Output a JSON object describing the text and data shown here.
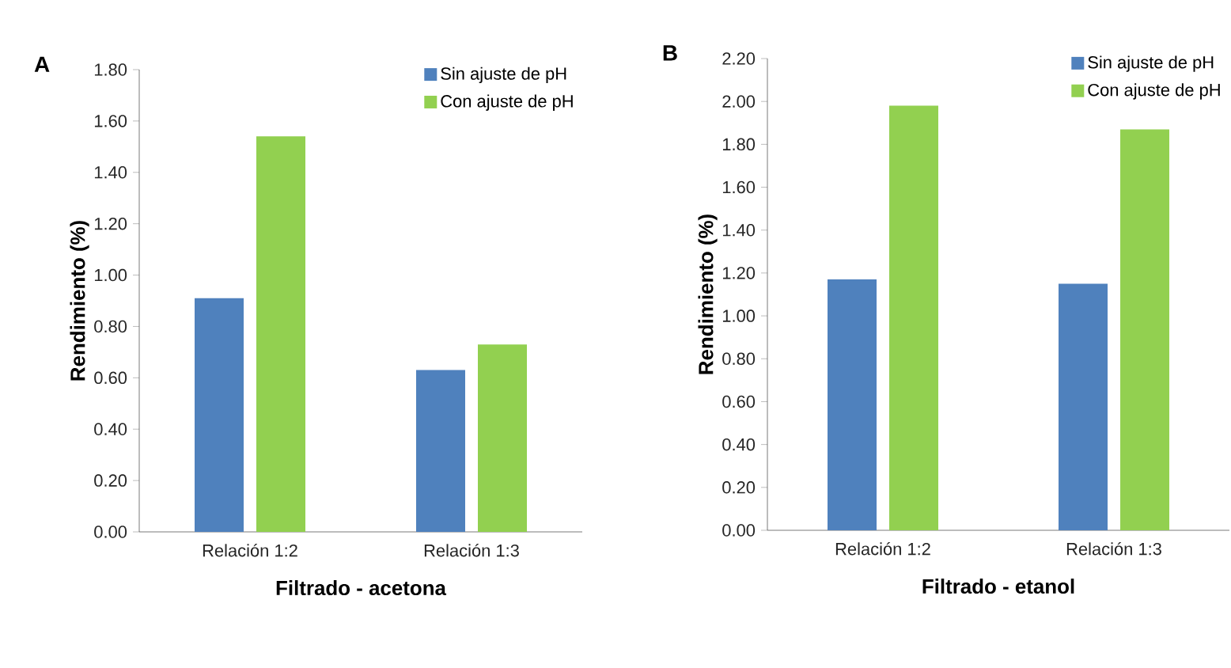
{
  "chart_data": [
    {
      "type": "bar",
      "annotations": [
        "A"
      ],
      "xlabel": "Filtrado - acetona",
      "ylabel": "Rendimiento (%)",
      "categories": [
        "Relación 1:2",
        "Relación 1:3"
      ],
      "series": [
        {
          "name": "Sin ajuste de pH",
          "color": "#4f81bd",
          "values": [
            0.91,
            0.63
          ]
        },
        {
          "name": "Con ajuste de pH",
          "color": "#92d050",
          "values": [
            1.54,
            0.73
          ]
        }
      ],
      "ylim": [
        0,
        1.8
      ],
      "yticks": [
        {
          "value": 0,
          "label": "0.00"
        },
        {
          "value": 0.2,
          "label": "0.20"
        },
        {
          "value": 0.4,
          "label": "0.40"
        },
        {
          "value": 0.6,
          "label": "0.60"
        },
        {
          "value": 0.8,
          "label": "0.80"
        },
        {
          "value": 1.0,
          "label": "1.00"
        },
        {
          "value": 1.2,
          "label": "1.20"
        },
        {
          "value": 1.4,
          "label": "1.40"
        },
        {
          "value": 1.6,
          "label": "1.60"
        },
        {
          "value": 1.8,
          "label": "1.80"
        }
      ],
      "legend": "top right"
    },
    {
      "type": "bar",
      "annotations": [
        "B"
      ],
      "xlabel": "Filtrado - etanol",
      "ylabel": "Rendimiento (%)",
      "categories": [
        "Relación 1:2",
        "Relación 1:3"
      ],
      "series": [
        {
          "name": "Sin ajuste de pH",
          "color": "#4f81bd",
          "values": [
            1.17,
            1.15
          ]
        },
        {
          "name": "Con ajuste de pH",
          "color": "#92d050",
          "values": [
            1.98,
            1.87
          ]
        }
      ],
      "ylim": [
        0,
        2.2
      ],
      "yticks": [
        {
          "value": 0,
          "label": "0.00"
        },
        {
          "value": 0.2,
          "label": "0.20"
        },
        {
          "value": 0.4,
          "label": "0.40"
        },
        {
          "value": 0.6,
          "label": "0.60"
        },
        {
          "value": 0.8,
          "label": "0.80"
        },
        {
          "value": 1.0,
          "label": "1.00"
        },
        {
          "value": 1.2,
          "label": "1.20"
        },
        {
          "value": 1.4,
          "label": "1.40"
        },
        {
          "value": 1.6,
          "label": "1.60"
        },
        {
          "value": 1.8,
          "label": "1.80"
        },
        {
          "value": 2.0,
          "label": "2.00"
        },
        {
          "value": 2.2,
          "label": "2.20"
        }
      ],
      "legend": "top right"
    }
  ]
}
